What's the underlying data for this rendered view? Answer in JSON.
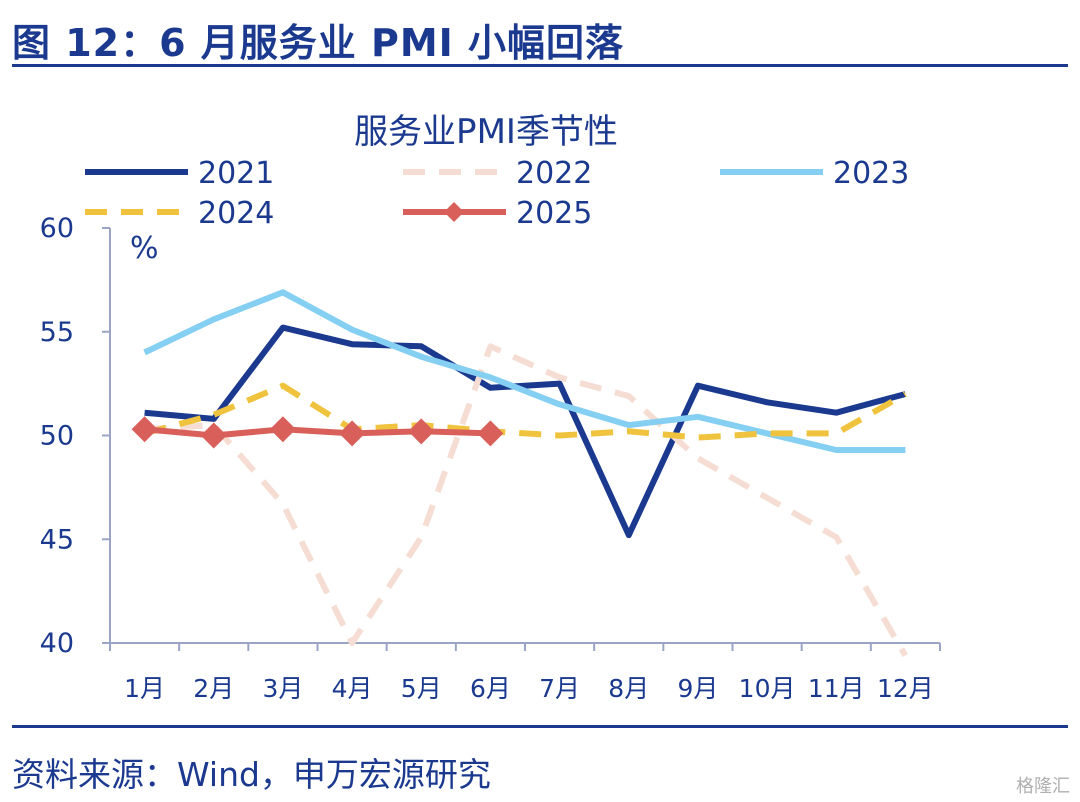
{
  "figure_title": "图 12：6 月服务业 PMI 小幅回落",
  "source": "资料来源：Wind，申万宏源研究",
  "watermark": "格隆汇",
  "chart_data": {
    "type": "line",
    "title": "服务业PMI季节性",
    "ylabel": "%",
    "xlabel": "",
    "ylim": [
      40,
      60
    ],
    "yticks": [
      40,
      45,
      50,
      55,
      60
    ],
    "categories": [
      "1月",
      "2月",
      "3月",
      "4月",
      "5月",
      "6月",
      "7月",
      "8月",
      "9月",
      "10月",
      "11月",
      "12月"
    ],
    "grid": false,
    "legend_position": "top",
    "series": [
      {
        "name": "2021",
        "color": "#1b3a8f",
        "style": "solid",
        "marker": "none",
        "values": [
          51.1,
          50.8,
          55.2,
          54.4,
          54.3,
          52.3,
          52.5,
          45.2,
          52.4,
          51.6,
          51.1,
          52.0
        ]
      },
      {
        "name": "2022",
        "color": "#f6ddd3",
        "style": "dashed",
        "marker": "none",
        "values": [
          50.3,
          50.5,
          46.7,
          40.0,
          45.1,
          54.3,
          52.8,
          51.9,
          48.9,
          47.0,
          45.1,
          39.4
        ]
      },
      {
        "name": "2023",
        "color": "#85cff2",
        "style": "solid",
        "marker": "none",
        "values": [
          54.0,
          55.6,
          56.9,
          55.1,
          53.8,
          52.8,
          51.5,
          50.5,
          50.9,
          50.1,
          49.3,
          49.3
        ]
      },
      {
        "name": "2024",
        "color": "#f0c33e",
        "style": "dashed",
        "marker": "none",
        "values": [
          50.1,
          51.0,
          52.4,
          50.3,
          50.5,
          50.2,
          50.0,
          50.2,
          49.9,
          50.1,
          50.1,
          52.0
        ]
      },
      {
        "name": "2025",
        "color": "#d9605a",
        "style": "solid",
        "marker": "diamond",
        "values": [
          50.3,
          50.0,
          50.3,
          50.1,
          50.2,
          50.1,
          null,
          null,
          null,
          null,
          null,
          null
        ]
      }
    ]
  }
}
